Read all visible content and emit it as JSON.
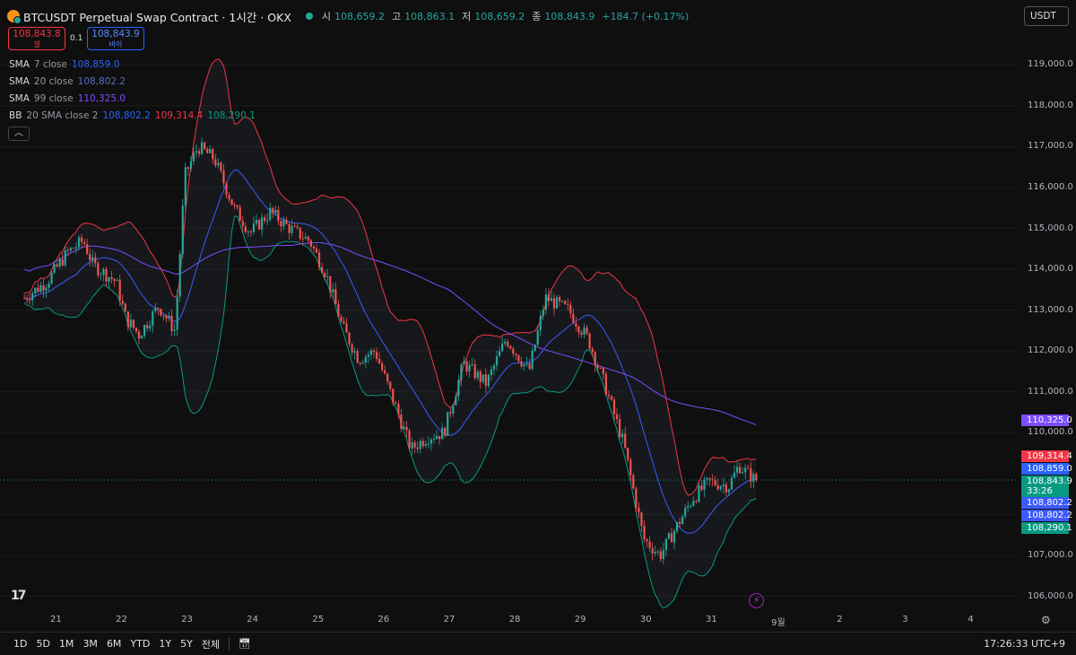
{
  "header": {
    "title": "BTCUSDT Perpetual Swap Contract · 1시간 · OKX",
    "ohlc": [
      {
        "k": "시",
        "v": "108,659.2"
      },
      {
        "k": "고",
        "v": "108,863.1"
      },
      {
        "k": "저",
        "v": "108,659.2"
      },
      {
        "k": "종",
        "v": "108,843.9"
      }
    ],
    "change": "+184.7 (+0.17%)"
  },
  "trade": {
    "sell_price": "108,843.8",
    "sell_label": "셀",
    "spread": "0.1",
    "buy_price": "108,843.9",
    "buy_label": "바이"
  },
  "indicators": [
    {
      "name": "SMA",
      "params": "7 close",
      "value": "108,859.0",
      "color": "#2962ff"
    },
    {
      "name": "SMA",
      "params": "20 close",
      "value": "108,802.2",
      "color": "#3d5afe"
    },
    {
      "name": "SMA",
      "params": "99 close",
      "value": "110,325.0",
      "color": "#7c4dff"
    },
    {
      "name": "BB",
      "params": "20 SMA close 2",
      "value": "108,802.2",
      "value2": "109,314.4",
      "value3": "108,290.1"
    }
  ],
  "collapse_icon": "chevron-up-icon",
  "currency": "USDT",
  "y_axis": [
    "119,000.0",
    "118,000.0",
    "117,000.0",
    "116,000.0",
    "115,000.0",
    "114,000.0",
    "113,000.0",
    "112,000.0",
    "111,000.0",
    "110,000.0",
    "107,000.0",
    "106,000.0"
  ],
  "price_tags": [
    {
      "label": "110,325.0",
      "color": "#7c4dff"
    },
    {
      "label": "109,314.4",
      "color": "#f23645"
    },
    {
      "label": "108,859.0",
      "color": "#2962ff"
    },
    {
      "label": "108,843.9",
      "color": "#089981"
    },
    {
      "label": "33:26",
      "color": "#089981"
    },
    {
      "label": "108,802.2",
      "color": "#3d5afe"
    },
    {
      "label": "108,802.2",
      "color": "#3d5afe"
    },
    {
      "label": "108,290.1",
      "color": "#089981"
    }
  ],
  "x_axis": [
    "21",
    "22",
    "23",
    "24",
    "25",
    "26",
    "27",
    "28",
    "29",
    "30",
    "31",
    "9월",
    "2",
    "3",
    "4"
  ],
  "timeframes": [
    "1D",
    "5D",
    "1M",
    "3M",
    "6M",
    "YTD",
    "1Y",
    "5Y",
    "전체"
  ],
  "clock": "17:26:33 UTC+9",
  "colors": {
    "up": "#26a69a",
    "down": "#ef5350",
    "bb_upper": "#f23645",
    "bb_lower": "#089981"
  },
  "chart_data": {
    "type": "candlestick",
    "title": "BTCUSDT Perpetual Swap Contract · 1시간 · OKX",
    "ylim": [
      105800,
      119500
    ],
    "x_range": [
      20.55,
      35.1
    ],
    "last_price": 108843.9
  }
}
